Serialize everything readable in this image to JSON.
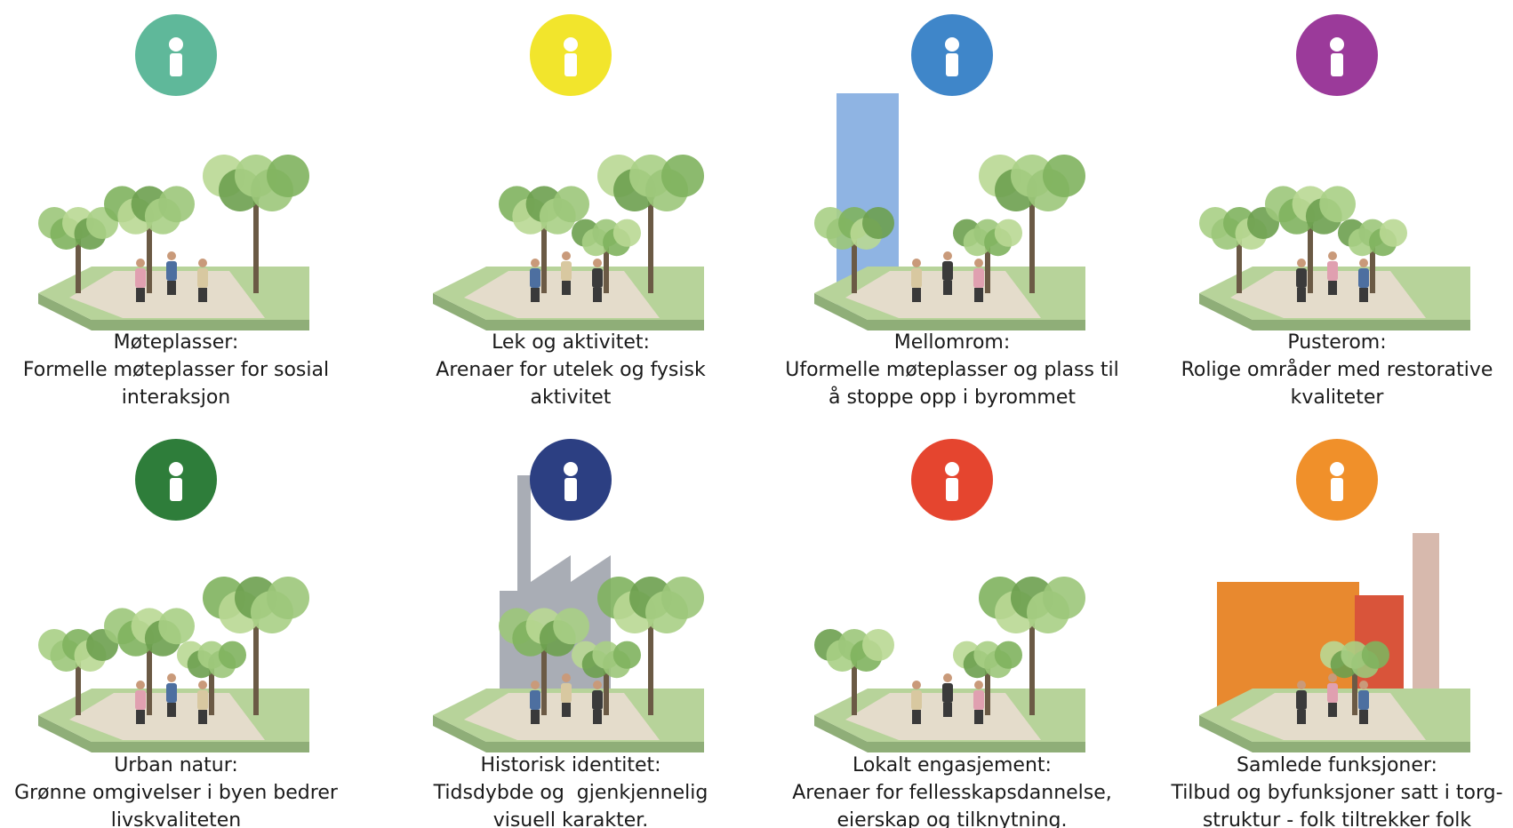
{
  "items": [
    {
      "title": "Møteplasser:",
      "lines": [
        "Formelle møteplasser for sosial",
        "interaksjon"
      ],
      "color": "#5fb89a"
    },
    {
      "title": "Lek og aktivitet:",
      "lines": [
        "Arenaer for utelek og fysisk",
        "aktivitet"
      ],
      "color": "#f2e52c"
    },
    {
      "title": "Mellomrom:",
      "lines": [
        "Uformelle møteplasser og plass til",
        "å stoppe opp i byrommet"
      ],
      "color": "#3f86c9"
    },
    {
      "title": "Pusterom:",
      "lines": [
        "Rolige områder med restorative",
        "kvaliteter"
      ],
      "color": "#9b3a9a"
    },
    {
      "title": "Urban natur:",
      "lines": [
        "Grønne omgivelser i byen bedrer",
        "livskvaliteten"
      ],
      "color": "#2e7d3a"
    },
    {
      "title": "Historisk identitet:",
      "lines": [
        "Tidsdybde og  gjenkjennelig",
        "visuell karakter."
      ],
      "color": "#2c3f82"
    },
    {
      "title": "Lokalt engasjement:",
      "lines": [
        "Arenaer for fellesskapsdannelse,",
        "eierskap og tilknytning."
      ],
      "color": "#e5452f"
    },
    {
      "title": "Samlede funksjoner:",
      "lines": [
        "Tilbud og byfunksjoner satt i torg-",
        "struktur - folk tiltrekker folk"
      ],
      "color": "#f0902a"
    }
  ]
}
